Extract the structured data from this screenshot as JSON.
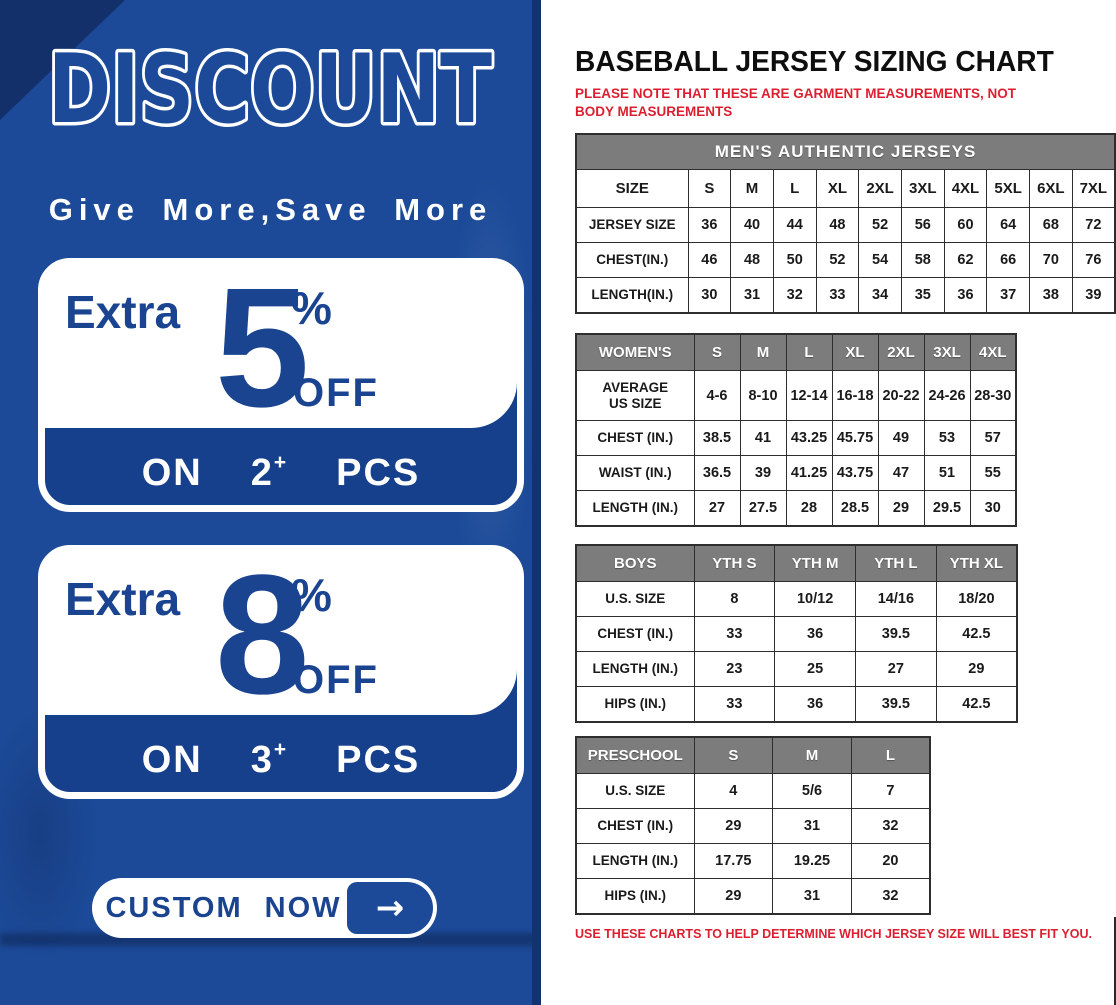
{
  "colors": {
    "panel_blue": "#1c4a98",
    "dark_navy": "#14306b",
    "bar_blue": "#163f8c",
    "accent_blue": "#1a4390",
    "header_gray": "#7c7c7c",
    "note_red": "#dc1f30"
  },
  "left_panel": {
    "title": "DISCOUNT",
    "subtitle": "Give More,Save More",
    "offers": [
      {
        "prefix": "Extra",
        "percent": "5",
        "percent_sign": "%",
        "off": "OFF",
        "on": "ON",
        "qty": "2",
        "plus": "+",
        "pcs": "PCS"
      },
      {
        "prefix": "Extra",
        "percent": "8",
        "percent_sign": "%",
        "off": "OFF",
        "on": "ON",
        "qty": "3",
        "plus": "+",
        "pcs": "PCS"
      }
    ],
    "cta": {
      "label": "CUSTOM NOW",
      "arrow": "→"
    }
  },
  "right_panel": {
    "title": "BASEBALL JERSEY SIZING CHART",
    "note": "PLEASE NOTE THAT THESE ARE GARMENT MEASUREMENTS, NOT BODY MEASUREMENTS",
    "footer": "USE THESE CHARTS TO HELP DETERMINE WHICH JERSEY SIZE WILL BEST FIT YOU.",
    "tables": [
      {
        "banner": "MEN'S AUTHENTIC JERSEYS",
        "head_label": "SIZE",
        "head_gray": false,
        "columns": [
          "S",
          "M",
          "L",
          "XL",
          "2XL",
          "3XL",
          "4XL",
          "5XL",
          "6XL",
          "7XL"
        ],
        "rows": [
          {
            "label": "JERSEY SIZE",
            "values": [
              "36",
              "40",
              "44",
              "48",
              "52",
              "56",
              "60",
              "64",
              "68",
              "72"
            ]
          },
          {
            "label": "CHEST(IN.)",
            "values": [
              "46",
              "48",
              "50",
              "52",
              "54",
              "58",
              "62",
              "66",
              "70",
              "76"
            ]
          },
          {
            "label": "LENGTH(IN.)",
            "values": [
              "30",
              "31",
              "32",
              "33",
              "34",
              "35",
              "36",
              "37",
              "38",
              "39"
            ]
          }
        ]
      },
      {
        "banner": "",
        "head_label": "WOMEN'S",
        "head_gray": true,
        "columns": [
          "S",
          "M",
          "L",
          "XL",
          "2XL",
          "3XL",
          "4XL"
        ],
        "rows": [
          {
            "label": "AVERAGE\nUS SIZE",
            "values": [
              "4-6",
              "8-10",
              "12-14",
              "16-18",
              "20-22",
              "24-26",
              "28-30"
            ]
          },
          {
            "label": "CHEST (IN.)",
            "values": [
              "38.5",
              "41",
              "43.25",
              "45.75",
              "49",
              "53",
              "57"
            ]
          },
          {
            "label": "WAIST (IN.)",
            "values": [
              "36.5",
              "39",
              "41.25",
              "43.75",
              "47",
              "51",
              "55"
            ]
          },
          {
            "label": "LENGTH (IN.)",
            "values": [
              "27",
              "27.5",
              "28",
              "28.5",
              "29",
              "29.5",
              "30"
            ]
          }
        ]
      },
      {
        "banner": "",
        "head_label": "BOYS",
        "head_gray": true,
        "columns": [
          "YTH S",
          "YTH M",
          "YTH L",
          "YTH XL"
        ],
        "rows": [
          {
            "label": "U.S. SIZE",
            "values": [
              "8",
              "10/12",
              "14/16",
              "18/20"
            ]
          },
          {
            "label": "CHEST (IN.)",
            "values": [
              "33",
              "36",
              "39.5",
              "42.5"
            ]
          },
          {
            "label": "LENGTH (IN.)",
            "values": [
              "23",
              "25",
              "27",
              "29"
            ]
          },
          {
            "label": "HIPS (IN.)",
            "values": [
              "33",
              "36",
              "39.5",
              "42.5"
            ]
          }
        ]
      },
      {
        "banner": "",
        "head_label": "PRESCHOOL",
        "head_gray": true,
        "columns": [
          "S",
          "M",
          "L"
        ],
        "rows": [
          {
            "label": "U.S. SIZE",
            "values": [
              "4",
              "5/6",
              "7"
            ]
          },
          {
            "label": "CHEST (IN.)",
            "values": [
              "29",
              "31",
              "32"
            ]
          },
          {
            "label": "LENGTH (IN.)",
            "values": [
              "17.75",
              "19.25",
              "20"
            ]
          },
          {
            "label": "HIPS (IN.)",
            "values": [
              "29",
              "31",
              "32"
            ]
          }
        ]
      }
    ]
  }
}
